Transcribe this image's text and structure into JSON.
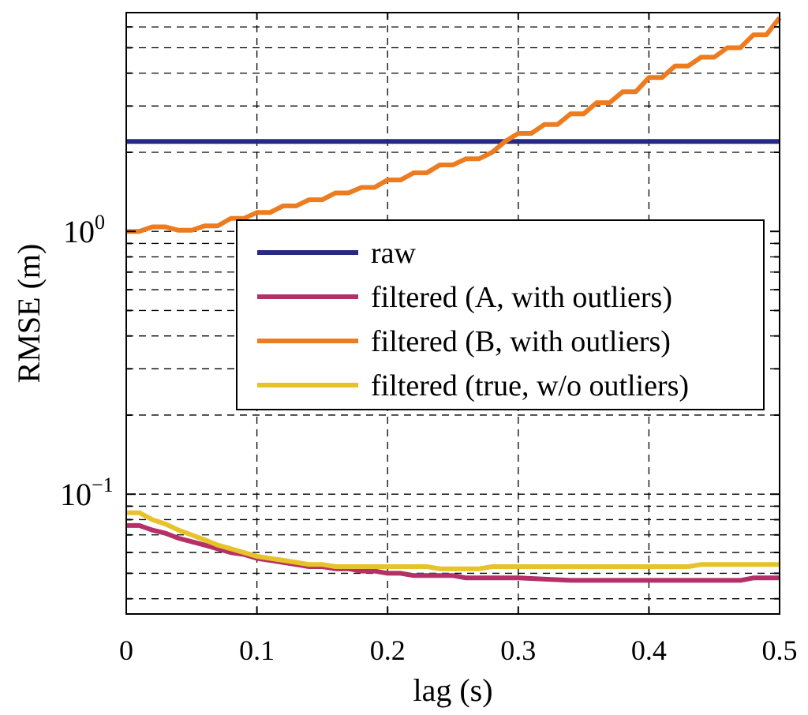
{
  "chart_data": {
    "type": "line",
    "xlabel": "lag (s)",
    "ylabel": "RMSE (m)",
    "xlim": [
      0,
      0.5
    ],
    "ylim": [
      0.035,
      6.8
    ],
    "yscale": "log",
    "grid": true,
    "x_ticks": [
      {
        "value": 0,
        "label": "0"
      },
      {
        "value": 0.1,
        "label": "0.1"
      },
      {
        "value": 0.2,
        "label": "0.2"
      },
      {
        "value": 0.3,
        "label": "0.3"
      },
      {
        "value": 0.4,
        "label": "0.4"
      },
      {
        "value": 0.5,
        "label": "0.5"
      }
    ],
    "y_ticks": [
      {
        "value": 0.1,
        "base": "10",
        "exp": "−1"
      },
      {
        "value": 1,
        "base": "10",
        "exp": "0"
      }
    ],
    "legend_position": "center-right",
    "series": [
      {
        "name": "raw",
        "color": "#262a80",
        "x": [
          0,
          0.5
        ],
        "values": [
          2.2,
          2.2
        ]
      },
      {
        "name": "filtered (A, with outliers)",
        "color": "#b53069",
        "x": [
          0,
          0.01,
          0.02,
          0.03,
          0.04,
          0.05,
          0.06,
          0.07,
          0.08,
          0.09,
          0.1,
          0.11,
          0.12,
          0.13,
          0.14,
          0.15,
          0.16,
          0.17,
          0.18,
          0.19,
          0.2,
          0.21,
          0.22,
          0.23,
          0.24,
          0.25,
          0.26,
          0.3,
          0.34,
          0.47,
          0.48,
          0.5
        ],
        "values": [
          0.076,
          0.076,
          0.073,
          0.071,
          0.068,
          0.066,
          0.064,
          0.062,
          0.06,
          0.059,
          0.057,
          0.056,
          0.055,
          0.054,
          0.053,
          0.053,
          0.052,
          0.052,
          0.051,
          0.051,
          0.05,
          0.05,
          0.049,
          0.049,
          0.049,
          0.049,
          0.048,
          0.048,
          0.047,
          0.047,
          0.048,
          0.048
        ]
      },
      {
        "name": "filtered (B, with outliers)",
        "color": "#ec7c1f",
        "x": [
          0,
          0.01,
          0.02,
          0.03,
          0.04,
          0.05,
          0.06,
          0.07,
          0.08,
          0.09,
          0.1,
          0.11,
          0.12,
          0.13,
          0.14,
          0.15,
          0.16,
          0.17,
          0.18,
          0.19,
          0.2,
          0.21,
          0.22,
          0.23,
          0.24,
          0.25,
          0.26,
          0.27,
          0.28,
          0.29,
          0.3,
          0.31,
          0.32,
          0.33,
          0.34,
          0.35,
          0.36,
          0.37,
          0.38,
          0.39,
          0.4,
          0.41,
          0.42,
          0.43,
          0.44,
          0.45,
          0.46,
          0.47,
          0.48,
          0.49,
          0.5
        ],
        "values": [
          1.0,
          1.0,
          1.04,
          1.04,
          1.01,
          1.01,
          1.05,
          1.05,
          1.12,
          1.12,
          1.18,
          1.18,
          1.25,
          1.25,
          1.32,
          1.32,
          1.4,
          1.4,
          1.47,
          1.47,
          1.57,
          1.57,
          1.67,
          1.67,
          1.79,
          1.79,
          1.89,
          1.89,
          2.0,
          2.2,
          2.36,
          2.36,
          2.55,
          2.55,
          2.8,
          2.8,
          3.09,
          3.09,
          3.4,
          3.4,
          3.85,
          3.85,
          4.26,
          4.26,
          4.6,
          4.6,
          5.0,
          5.0,
          5.6,
          5.6,
          6.5
        ]
      },
      {
        "name": "filtered (true, w/o outliers)",
        "color": "#e7c22b",
        "x": [
          0,
          0.01,
          0.02,
          0.03,
          0.04,
          0.05,
          0.06,
          0.07,
          0.08,
          0.09,
          0.1,
          0.11,
          0.12,
          0.13,
          0.14,
          0.15,
          0.16,
          0.17,
          0.18,
          0.19,
          0.2,
          0.21,
          0.22,
          0.23,
          0.24,
          0.25,
          0.26,
          0.27,
          0.28,
          0.43,
          0.44,
          0.5
        ],
        "values": [
          0.085,
          0.085,
          0.08,
          0.077,
          0.073,
          0.07,
          0.067,
          0.064,
          0.062,
          0.06,
          0.058,
          0.057,
          0.056,
          0.055,
          0.054,
          0.054,
          0.053,
          0.053,
          0.053,
          0.053,
          0.053,
          0.053,
          0.053,
          0.053,
          0.052,
          0.052,
          0.052,
          0.052,
          0.053,
          0.053,
          0.054,
          0.054
        ]
      }
    ]
  }
}
